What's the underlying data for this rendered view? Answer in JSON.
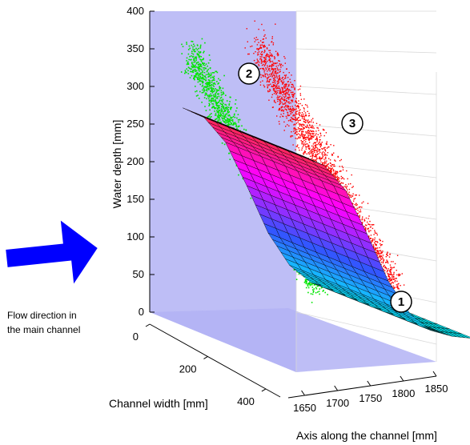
{
  "annotation": {
    "line1": "Flow direction in",
    "line2": "the main channel"
  },
  "colors": {
    "arrow": "#0000ff",
    "wall_plane": "#b3b3f5",
    "point_series_upstream": "#00e600",
    "point_series_downstream": "#ff0000",
    "surface_colormap": [
      "#00ffff",
      "#3355ff",
      "#ff00ff",
      "#ff3030"
    ],
    "grid": "#d9d9d9"
  },
  "chart_data": {
    "type": "surface3d",
    "title": "",
    "zlabel": "Water depth [mm]",
    "ylabel": "Channel width [mm]",
    "xlabel": "Axis along the channel [mm]",
    "zlim": [
      0,
      400
    ],
    "ylim": [
      0,
      450
    ],
    "xlim": [
      1625,
      1850
    ],
    "z_ticks": [
      "0",
      "50",
      "100",
      "150",
      "200",
      "250",
      "300",
      "350",
      "400"
    ],
    "y_ticks": [
      "0",
      "200",
      "400"
    ],
    "x_ticks": [
      "1650",
      "1700",
      "1750",
      "1800",
      "1850"
    ],
    "grid": true,
    "markers": [
      "1",
      "2",
      "3"
    ],
    "surface_profile": {
      "along_channel": [
        1650,
        1670,
        1690,
        1710,
        1730,
        1750,
        1770,
        1790,
        1810
      ],
      "water_depth": [
        275,
        265,
        235,
        180,
        120,
        80,
        60,
        55,
        55
      ]
    },
    "point_clouds": [
      {
        "color": "green"
      },
      {
        "color": "red"
      }
    ]
  }
}
